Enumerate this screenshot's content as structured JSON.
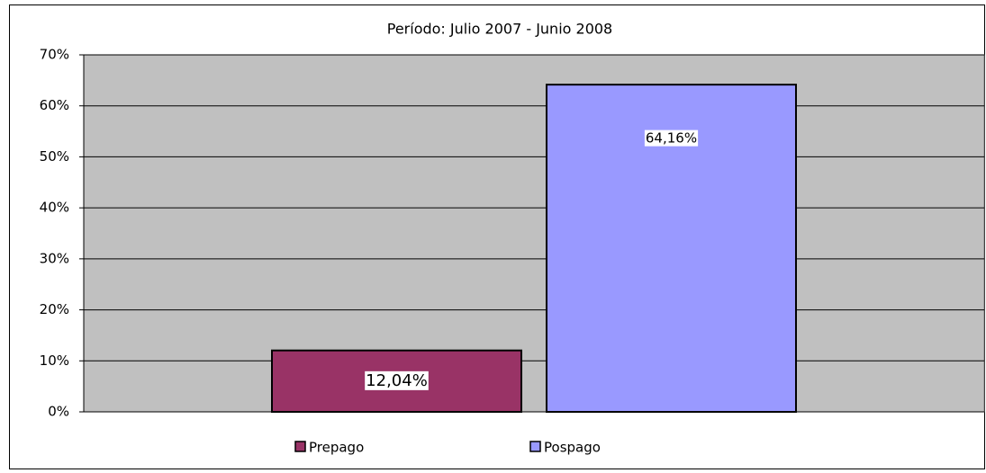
{
  "chart_data": {
    "type": "bar",
    "title": "Período: Julio 2007 - Junio 2008",
    "categories": [
      null
    ],
    "series": [
      {
        "name": "Prepago",
        "color": "#993366",
        "values": [
          12.04
        ],
        "value_labels": [
          "12,04%"
        ]
      },
      {
        "name": "Pospago",
        "color": "#9999ff",
        "values": [
          64.16
        ],
        "value_labels": [
          "64,16%"
        ]
      }
    ],
    "ylim": [
      0,
      70
    ],
    "yticks": [
      {
        "value": 0,
        "label": "0%"
      },
      {
        "value": 10,
        "label": "10%"
      },
      {
        "value": 20,
        "label": "20%"
      },
      {
        "value": 30,
        "label": "30%"
      },
      {
        "value": 40,
        "label": "40%"
      },
      {
        "value": 50,
        "label": "50%"
      },
      {
        "value": 60,
        "label": "60%"
      },
      {
        "value": 70,
        "label": "70%"
      }
    ],
    "grid": true,
    "legend": "bottom",
    "plot_background": "#c0c0c0"
  }
}
